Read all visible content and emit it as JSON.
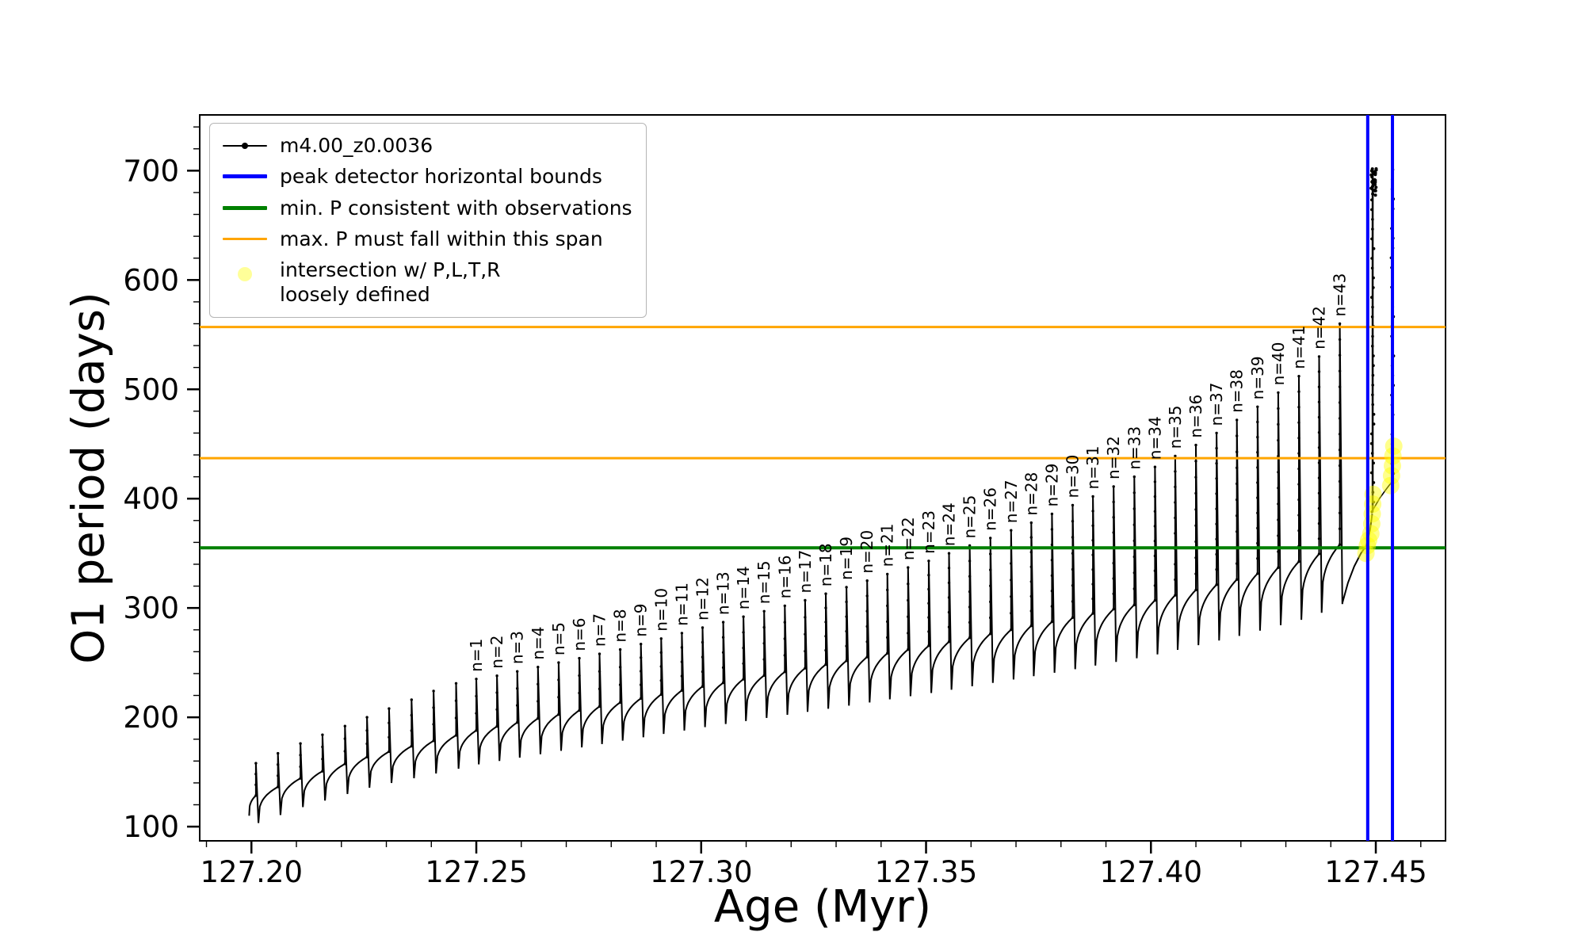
{
  "figure": {
    "background": "#ffffff",
    "xlabel": "Age (Myr)",
    "ylabel": "O1 period (days)",
    "x_tick_labels": [
      "127.20",
      "127.25",
      "127.30",
      "127.35",
      "127.40",
      "127.45"
    ],
    "x_tick_values": [
      127.2,
      127.25,
      127.3,
      127.35,
      127.4,
      127.45
    ],
    "y_tick_labels": [
      "100",
      "200",
      "300",
      "400",
      "500",
      "600",
      "700"
    ],
    "y_tick_values": [
      100,
      200,
      300,
      400,
      500,
      600,
      700
    ],
    "x_minor_step": 0.01,
    "y_minor_step": 20
  },
  "legend": {
    "items": [
      {
        "label": "m4.00_z0.0036",
        "swatch": "line-dot",
        "color": "#000000",
        "lw": 2
      },
      {
        "label": "peak detector horizontal bounds",
        "swatch": "line",
        "color": "#0000ff",
        "lw": 5
      },
      {
        "label": "min. P consistent with observations",
        "swatch": "line",
        "color": "#008000",
        "lw": 5
      },
      {
        "label": "max. P must fall within this span",
        "swatch": "line",
        "color": "#ffa500",
        "lw": 3.5
      },
      {
        "label": "intersection w/ P,L,T,R\nloosely defined",
        "swatch": "dot",
        "color": "#ffff00"
      }
    ]
  },
  "chart_data": {
    "type": "line",
    "title": "",
    "series_name": "m4.00_z0.0036",
    "xlabel": "Age (Myr)",
    "ylabel": "O1 period (days)",
    "xlim": [
      127.1885,
      127.4655
    ],
    "ylim": [
      87,
      751
    ],
    "grid": false,
    "legend_position": "upper left",
    "colors": {
      "series": "#000000",
      "peak_bounds": "#0000ff",
      "min_P": "#008000",
      "max_P_span": "#ffa500",
      "intersection": "#ffff00"
    },
    "hlines": [
      {
        "y": 355,
        "color": "#008000",
        "width": 4,
        "name": "min-P-line"
      },
      {
        "y": 437,
        "color": "#ffa500",
        "width": 3,
        "name": "max-P-span-lower-line"
      },
      {
        "y": 557,
        "color": "#ffa500",
        "width": 3,
        "name": "max-P-span-upper-line"
      }
    ],
    "vlines": [
      {
        "x": 127.4482,
        "color": "#0000ff",
        "width": 4,
        "name": "peak-bound-left-line"
      },
      {
        "x": 127.4537,
        "color": "#0000ff",
        "width": 4,
        "name": "peak-bound-right-line"
      }
    ],
    "annotation_prefix": "n=",
    "series_start": [
      127.1995,
      110
    ],
    "envelope": [
      [
        127.1885,
        118
      ],
      [
        127.1995,
        126
      ],
      [
        127.21,
        143
      ],
      [
        127.225,
        163
      ],
      [
        127.25,
        188
      ],
      [
        127.27,
        204
      ],
      [
        127.3,
        228
      ],
      [
        127.33,
        250
      ],
      [
        127.35,
        265
      ],
      [
        127.38,
        289
      ],
      [
        127.4,
        306
      ],
      [
        127.42,
        327
      ],
      [
        127.435,
        345
      ],
      [
        127.442,
        358
      ],
      [
        127.448,
        370
      ],
      [
        127.4495,
        390
      ]
    ],
    "dip_depth": {
      "x0": 127.2,
      "x1": 127.447,
      "at_x0": 25,
      "at_x1": 55
    },
    "pre_pulses": [
      {
        "x": 127.201,
        "peak": 158
      },
      {
        "x": 127.2059,
        "peak": 167
      },
      {
        "x": 127.2109,
        "peak": 176
      },
      {
        "x": 127.2158,
        "peak": 184
      },
      {
        "x": 127.2208,
        "peak": 192
      },
      {
        "x": 127.2257,
        "peak": 200
      },
      {
        "x": 127.2306,
        "peak": 208
      },
      {
        "x": 127.2356,
        "peak": 216
      },
      {
        "x": 127.2405,
        "peak": 224
      },
      {
        "x": 127.2455,
        "peak": 231
      }
    ],
    "pulses": [
      {
        "n": 1,
        "x": 127.25,
        "peak": 235
      },
      {
        "n": 2,
        "x": 127.2546,
        "peak": 238
      },
      {
        "n": 3,
        "x": 127.2591,
        "peak": 242
      },
      {
        "n": 4,
        "x": 127.2637,
        "peak": 246
      },
      {
        "n": 5,
        "x": 127.2683,
        "peak": 250
      },
      {
        "n": 6,
        "x": 127.2729,
        "peak": 254
      },
      {
        "n": 7,
        "x": 127.2774,
        "peak": 258
      },
      {
        "n": 8,
        "x": 127.282,
        "peak": 262
      },
      {
        "n": 9,
        "x": 127.2866,
        "peak": 267
      },
      {
        "n": 10,
        "x": 127.2911,
        "peak": 272
      },
      {
        "n": 11,
        "x": 127.2957,
        "peak": 277
      },
      {
        "n": 12,
        "x": 127.3003,
        "peak": 282
      },
      {
        "n": 13,
        "x": 127.3049,
        "peak": 287
      },
      {
        "n": 14,
        "x": 127.3094,
        "peak": 292
      },
      {
        "n": 15,
        "x": 127.314,
        "peak": 297
      },
      {
        "n": 16,
        "x": 127.3186,
        "peak": 302
      },
      {
        "n": 17,
        "x": 127.3231,
        "peak": 307
      },
      {
        "n": 18,
        "x": 127.3277,
        "peak": 313
      },
      {
        "n": 19,
        "x": 127.3323,
        "peak": 319
      },
      {
        "n": 20,
        "x": 127.3369,
        "peak": 325
      },
      {
        "n": 21,
        "x": 127.3414,
        "peak": 331
      },
      {
        "n": 22,
        "x": 127.346,
        "peak": 337
      },
      {
        "n": 23,
        "x": 127.3506,
        "peak": 343
      },
      {
        "n": 24,
        "x": 127.3551,
        "peak": 350
      },
      {
        "n": 25,
        "x": 127.3597,
        "peak": 357
      },
      {
        "n": 26,
        "x": 127.3643,
        "peak": 364
      },
      {
        "n": 27,
        "x": 127.3689,
        "peak": 371
      },
      {
        "n": 28,
        "x": 127.3734,
        "peak": 378
      },
      {
        "n": 29,
        "x": 127.378,
        "peak": 386
      },
      {
        "n": 30,
        "x": 127.3826,
        "peak": 394
      },
      {
        "n": 31,
        "x": 127.3871,
        "peak": 402
      },
      {
        "n": 32,
        "x": 127.3917,
        "peak": 411
      },
      {
        "n": 33,
        "x": 127.3963,
        "peak": 420
      },
      {
        "n": 34,
        "x": 127.4009,
        "peak": 429
      },
      {
        "n": 35,
        "x": 127.4054,
        "peak": 439
      },
      {
        "n": 36,
        "x": 127.41,
        "peak": 449
      },
      {
        "n": 37,
        "x": 127.4146,
        "peak": 460
      },
      {
        "n": 38,
        "x": 127.4191,
        "peak": 472
      },
      {
        "n": 39,
        "x": 127.4237,
        "peak": 484
      },
      {
        "n": 40,
        "x": 127.4283,
        "peak": 497
      },
      {
        "n": 41,
        "x": 127.4329,
        "peak": 512
      },
      {
        "n": 42,
        "x": 127.4374,
        "peak": 530
      },
      {
        "n": 43,
        "x": 127.442,
        "peak": 560
      }
    ],
    "final_rise": [
      [
        127.4426,
        305
      ],
      [
        127.4438,
        323
      ],
      [
        127.4452,
        338
      ],
      [
        127.4467,
        350
      ],
      [
        127.4479,
        357
      ],
      [
        127.4487,
        371
      ],
      [
        127.4492,
        386
      ]
    ],
    "rise2": [
      [
        127.4494,
        390
      ],
      [
        127.4508,
        400
      ],
      [
        127.4522,
        408
      ],
      [
        127.4535,
        415
      ]
    ],
    "clusters": [
      {
        "x": 127.4493,
        "y0": 388,
        "y1": 700
      },
      {
        "x": 127.4537,
        "y0": 414,
        "y1": 701
      }
    ],
    "top_scatter": {
      "x0": 127.4489,
      "x1": 127.4501,
      "y0": 676,
      "y1": 703,
      "count": 28
    },
    "yellow_points": [
      [
        127.4478,
        350
      ],
      [
        127.4481,
        357
      ],
      [
        127.4484,
        362
      ],
      [
        127.4489,
        368
      ],
      [
        127.4491,
        377
      ],
      [
        127.4492,
        386
      ],
      [
        127.4493,
        395
      ],
      [
        127.4494,
        404
      ],
      [
        127.4533,
        412
      ],
      [
        127.4535,
        421
      ],
      [
        127.4537,
        430
      ],
      [
        127.4538,
        439
      ],
      [
        127.454,
        448
      ]
    ]
  }
}
